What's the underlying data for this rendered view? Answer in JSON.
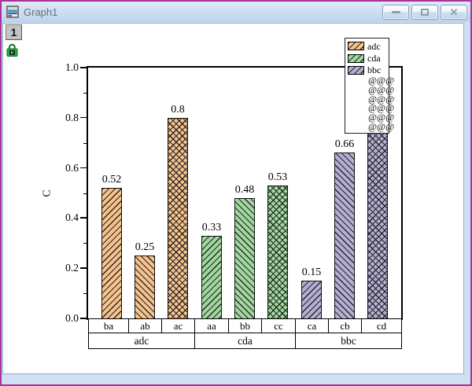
{
  "window": {
    "title": "Graph1",
    "title_icon": "graph-window-icon",
    "buttons": [
      "minimize",
      "maximize",
      "close"
    ]
  },
  "page": {
    "layer_badge": "1",
    "lock_icon": "layer-lock-icon",
    "lock_color": "#22b14c"
  },
  "chart_data": {
    "type": "bar",
    "title": "",
    "xlabel": "",
    "ylabel": "C",
    "ylim": [
      0.0,
      1.0
    ],
    "grid": false,
    "legend_position": "top-right",
    "yticks_major": [
      {
        "value": 0.0,
        "label": "0.0"
      },
      {
        "value": 0.2,
        "label": "0.2"
      },
      {
        "value": 0.4,
        "label": "0.4"
      },
      {
        "value": 0.6,
        "label": "0.6"
      },
      {
        "value": 0.8,
        "label": "0.8"
      },
      {
        "value": 1.0,
        "label": "1.0"
      }
    ],
    "yticks_minor": [
      0.1,
      0.3,
      0.5,
      0.7,
      0.9
    ],
    "hatch_line_color": "#262626",
    "groups": [
      {
        "label": "adc",
        "fill": "#F6C28B",
        "bars": [
          {
            "label": "ba",
            "value": 0.52,
            "value_label": "0.52",
            "hatch": "fwd"
          },
          {
            "label": "ab",
            "value": 0.25,
            "value_label": "0.25",
            "hatch": "back"
          },
          {
            "label": "ac",
            "value": 0.8,
            "value_label": "0.8",
            "hatch": "cross"
          }
        ]
      },
      {
        "label": "cda",
        "fill": "#9FD89D",
        "bars": [
          {
            "label": "aa",
            "value": 0.33,
            "value_label": "0.33",
            "hatch": "fwd"
          },
          {
            "label": "bb",
            "value": 0.48,
            "value_label": "0.48",
            "hatch": "back"
          },
          {
            "label": "cc",
            "value": 0.53,
            "value_label": "0.53",
            "hatch": "cross"
          }
        ]
      },
      {
        "label": "bbc",
        "fill": "#B5ADD3",
        "bars": [
          {
            "label": "ca",
            "value": 0.15,
            "value_label": "0.15",
            "hatch": "fwd"
          },
          {
            "label": "cb",
            "value": 0.66,
            "value_label": "0.66",
            "hatch": "back"
          },
          {
            "label": "cd",
            "value": 0.9,
            "value_label": "",
            "hatch": "cross"
          }
        ]
      }
    ],
    "legend": {
      "entries": [
        {
          "label": "adc",
          "fill": "#F6C28B"
        },
        {
          "label": "cda",
          "fill": "#9FD89D"
        },
        {
          "label": "bbc",
          "fill": "#B5ADD3"
        }
      ],
      "extra_rows": [
        "@@@",
        "@@@",
        "@@@",
        "@@@",
        "@@@",
        "@@@"
      ]
    }
  }
}
